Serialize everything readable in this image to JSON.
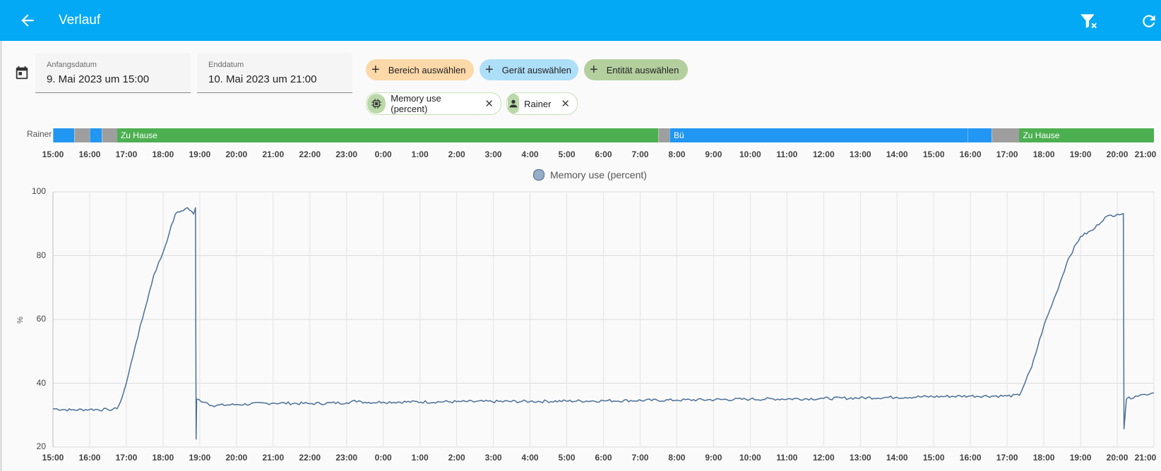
{
  "topbar": {
    "title": "Verlauf",
    "back_icon": "arrow-left",
    "filter_clear_icon": "filter-remove",
    "refresh_icon": "refresh"
  },
  "date_range": {
    "start": {
      "label": "Anfangsdatum",
      "value": "9. Mai 2023 um 15:00"
    },
    "end": {
      "label": "Enddatum",
      "value": "10. Mai 2023 um 21:00"
    }
  },
  "targets": {
    "add_buttons": [
      {
        "label": "Bereich auswählen",
        "color": "#fdd8a8"
      },
      {
        "label": "Gerät auswählen",
        "color": "#aedff8"
      },
      {
        "label": "Entität auswählen",
        "color": "#b3cf9e"
      }
    ],
    "selected": [
      {
        "label": "Memory use (percent)",
        "icon": "chip-icon"
      },
      {
        "label": "Rainer",
        "icon": "person-icon"
      }
    ]
  },
  "timeline": {
    "entity": "Rainer",
    "state_zone": "Zu Hause",
    "redacted_label": "Bü",
    "colors": {
      "home": "#4caf50",
      "away": "#2196f3",
      "unknown": "#9e9e9e"
    },
    "segments": [
      {
        "start": "15:00",
        "end": "15:35",
        "state": "away"
      },
      {
        "start": "15:35",
        "end": "16:00",
        "state": "unknown"
      },
      {
        "start": "16:00",
        "end": "16:20",
        "state": "away"
      },
      {
        "start": "16:20",
        "end": "16:45",
        "state": "unknown"
      },
      {
        "start": "16:45",
        "end": "7:30",
        "state": "home",
        "label": "Zu Hause"
      },
      {
        "start": "7:30",
        "end": "7:48",
        "state": "unknown"
      },
      {
        "start": "7:48",
        "end": "15:55",
        "state": "away",
        "label": "Bü"
      },
      {
        "start": "15:55",
        "end": "16:35",
        "state": "away"
      },
      {
        "start": "16:35",
        "end": "17:20",
        "state": "unknown"
      },
      {
        "start": "17:20",
        "end": "21:00",
        "state": "home",
        "label": "Zu Hause"
      }
    ]
  },
  "time_ticks": [
    "15:00",
    "16:00",
    "17:00",
    "18:00",
    "19:00",
    "20:00",
    "21:00",
    "22:00",
    "23:00",
    "0:00",
    "1:00",
    "2:00",
    "3:00",
    "4:00",
    "5:00",
    "6:00",
    "7:00",
    "8:00",
    "9:00",
    "10:00",
    "11:00",
    "12:00",
    "13:00",
    "14:00",
    "15:00",
    "16:00",
    "17:00",
    "18:00",
    "19:00",
    "20:00",
    "21:00"
  ],
  "chart_data": {
    "type": "line",
    "series": [
      {
        "name": "Memory use (percent)",
        "color": "#4b6f97",
        "points": [
          [
            "15:00",
            32.0
          ],
          [
            "15:30",
            31.6
          ],
          [
            "16:00",
            31.8
          ],
          [
            "16:30",
            31.7
          ],
          [
            "16:45",
            32.0
          ],
          [
            "16:50",
            34.0
          ],
          [
            "17:00",
            40.0
          ],
          [
            "17:15",
            52.0
          ],
          [
            "17:30",
            63.0
          ],
          [
            "17:45",
            74.0
          ],
          [
            "18:00",
            81.0
          ],
          [
            "18:10",
            87.0
          ],
          [
            "18:20",
            93.0
          ],
          [
            "18:30",
            94.0
          ],
          [
            "18:40",
            95.0
          ],
          [
            "18:50",
            93.0
          ],
          [
            "18:53",
            95.0
          ],
          [
            "18:54",
            22.5
          ],
          [
            "18:55",
            35.0
          ],
          [
            "19:10",
            34.0
          ],
          [
            "19:20",
            33.0
          ],
          [
            "20:00",
            33.3
          ],
          [
            "21:00",
            33.8
          ],
          [
            "22:00",
            33.6
          ],
          [
            "23:00",
            33.9
          ],
          [
            "23:20",
            34.5
          ],
          [
            "23:30",
            34.0
          ],
          [
            "0:00",
            34.1
          ],
          [
            "2:00",
            34.2
          ],
          [
            "4:00",
            34.3
          ],
          [
            "6:00",
            34.5
          ],
          [
            "8:00",
            34.7
          ],
          [
            "10:00",
            35.0
          ],
          [
            "12:00",
            35.2
          ],
          [
            "14:00",
            35.6
          ],
          [
            "16:00",
            36.0
          ],
          [
            "17:00",
            36.0
          ],
          [
            "17:20",
            36.2
          ],
          [
            "17:40",
            45.0
          ],
          [
            "18:00",
            58.0
          ],
          [
            "18:20",
            68.0
          ],
          [
            "18:40",
            79.0
          ],
          [
            "19:00",
            86.0
          ],
          [
            "19:20",
            88.0
          ],
          [
            "19:40",
            92.0
          ],
          [
            "20:00",
            93.0
          ],
          [
            "20:10",
            93.2
          ],
          [
            "20:11",
            25.7
          ],
          [
            "20:15",
            35.0
          ],
          [
            "20:30",
            36.0
          ],
          [
            "20:45",
            36.5
          ],
          [
            "21:00",
            37.0
          ]
        ]
      }
    ],
    "x_start": "9. Mai 2023 15:00",
    "x_end": "10. Mai 2023 21:00",
    "ylabel": "%",
    "yticks": [
      20,
      40,
      60,
      80,
      100
    ],
    "ylim": [
      20,
      100
    ],
    "grid": true,
    "legend_position": "top-center"
  }
}
